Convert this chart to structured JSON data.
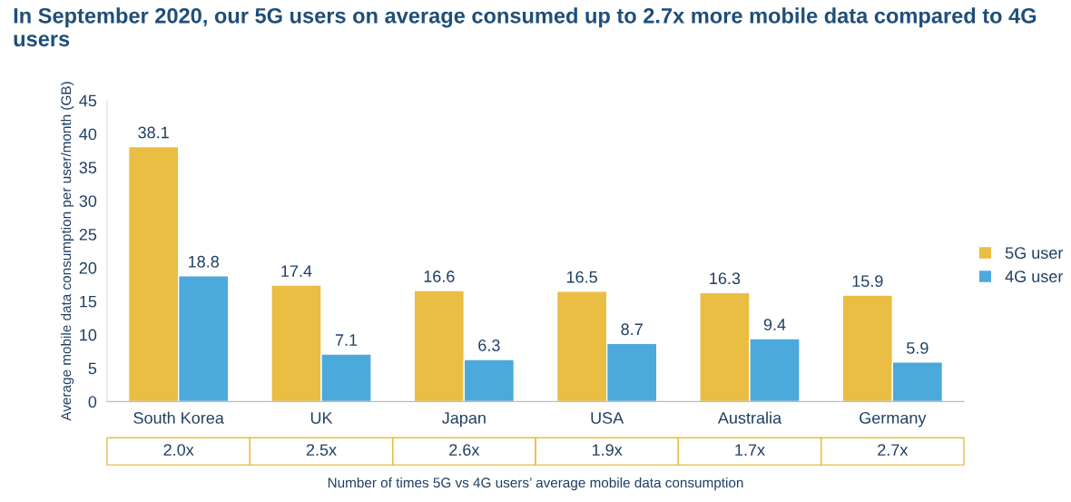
{
  "chart_data": {
    "type": "bar",
    "title": "In September 2020, our 5G users on average consumed up to 2.7x more mobile data compared to 4G users",
    "categories": [
      "South Korea",
      "UK",
      "Japan",
      "USA",
      "Australia",
      "Germany"
    ],
    "series": [
      {
        "name": "5G user",
        "color": "#eabd43",
        "values": [
          38.1,
          17.4,
          16.6,
          16.5,
          16.3,
          15.9
        ]
      },
      {
        "name": "4G user",
        "color": "#4ba9dc",
        "values": [
          18.8,
          7.1,
          6.3,
          8.7,
          9.4,
          5.9
        ]
      }
    ],
    "ylabel": "Average mobile data consumption per user/month (GB)",
    "xlabel": "Number of times 5G vs 4G users’ average mobile data consumption",
    "annotations": [
      "2.0x",
      "2.5x",
      "2.6x",
      "1.9x",
      "1.7x",
      "2.7x"
    ],
    "ylim": [
      0,
      45
    ],
    "yticks": [
      0,
      5,
      10,
      15,
      20,
      25,
      30,
      35,
      40,
      45
    ],
    "data_labels": true,
    "legend": "right",
    "grid": false
  }
}
